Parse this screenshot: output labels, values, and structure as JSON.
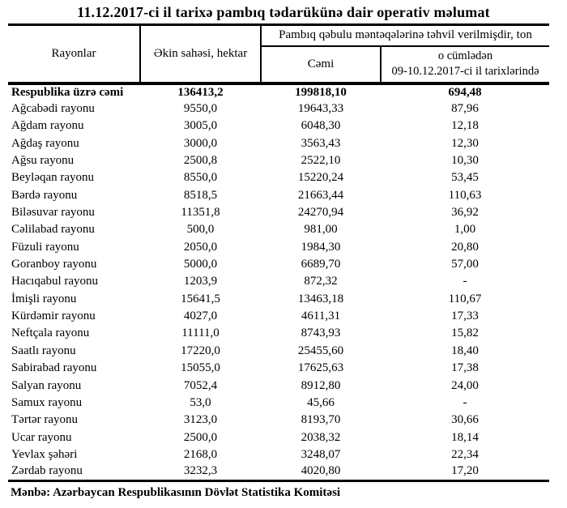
{
  "title": "11.12.2017-ci il tarixə pambıq tədarükünə dair operativ məlumat",
  "table": {
    "headers": {
      "rayon": "Rayonlar",
      "area": "Əkin sahəsi, hektar",
      "delivered_group": "Pambıq qəbulu məntəqələrinə təhvil verilmişdir, ton",
      "total": "Cəmi",
      "recent_line1": "o cümlədən",
      "recent_line2": "09-10.12.2017-ci il tarixlərində"
    },
    "rows": [
      {
        "name": "Respublika üzrə cəmi",
        "area": "136413,2",
        "total": "199818,10",
        "recent": "694,48",
        "bold": true
      },
      {
        "name": "Ağcabədi rayonu",
        "area": "9550,0",
        "total": "19643,33",
        "recent": "87,96"
      },
      {
        "name": "Ağdam rayonu",
        "area": "3005,0",
        "total": "6048,30",
        "recent": "12,18"
      },
      {
        "name": "Ağdaş rayonu",
        "area": "3000,0",
        "total": "3563,43",
        "recent": "12,30"
      },
      {
        "name": "Ağsu rayonu",
        "area": "2500,8",
        "total": "2522,10",
        "recent": "10,30"
      },
      {
        "name": "Beyləqan rayonu",
        "area": "8550,0",
        "total": "15220,24",
        "recent": "53,45"
      },
      {
        "name": "Bərdə rayonu",
        "area": "8518,5",
        "total": "21663,44",
        "recent": "110,63"
      },
      {
        "name": "Biləsuvar rayonu",
        "area": "11351,8",
        "total": "24270,94",
        "recent": "36,92"
      },
      {
        "name": "Cəlilabad rayonu",
        "area": "500,0",
        "total": "981,00",
        "recent": "1,00"
      },
      {
        "name": "Füzuli rayonu",
        "area": "2050,0",
        "total": "1984,30",
        "recent": "20,80"
      },
      {
        "name": "Goranboy rayonu",
        "area": "5000,0",
        "total": "6689,70",
        "recent": "57,00"
      },
      {
        "name": "Hacıqabul rayonu",
        "area": "1203,9",
        "total": "872,32",
        "recent": "-"
      },
      {
        "name": "İmişli rayonu",
        "area": "15641,5",
        "total": "13463,18",
        "recent": "110,67"
      },
      {
        "name": "Kürdəmir rayonu",
        "area": "4027,0",
        "total": "4611,31",
        "recent": "17,33"
      },
      {
        "name": "Neftçala rayonu",
        "area": "11111,0",
        "total": "8743,93",
        "recent": "15,82"
      },
      {
        "name": "Saatlı rayonu",
        "area": "17220,0",
        "total": "25455,60",
        "recent": "18,40"
      },
      {
        "name": "Sabirabad rayonu",
        "area": "15055,0",
        "total": "17625,63",
        "recent": "17,38"
      },
      {
        "name": "Salyan rayonu",
        "area": "7052,4",
        "total": "8912,80",
        "recent": "24,00"
      },
      {
        "name": "Samux rayonu",
        "area": "53,0",
        "total": "45,66",
        "recent": "-"
      },
      {
        "name": "Tərtər rayonu",
        "area": "3123,0",
        "total": "8193,70",
        "recent": "30,66"
      },
      {
        "name": "Ucar rayonu",
        "area": "2500,0",
        "total": "2038,32",
        "recent": "18,14"
      },
      {
        "name": "Yevlax şəhəri",
        "area": "2168,0",
        "total": "3248,07",
        "recent": "22,34"
      },
      {
        "name": "Zərdab rayonu",
        "area": "3232,3",
        "total": "4020,80",
        "recent": "17,20"
      }
    ]
  },
  "footer": {
    "source": "Mənbə: Azərbaycan Respublikasının Dövlət Statistika Komitəsi"
  }
}
